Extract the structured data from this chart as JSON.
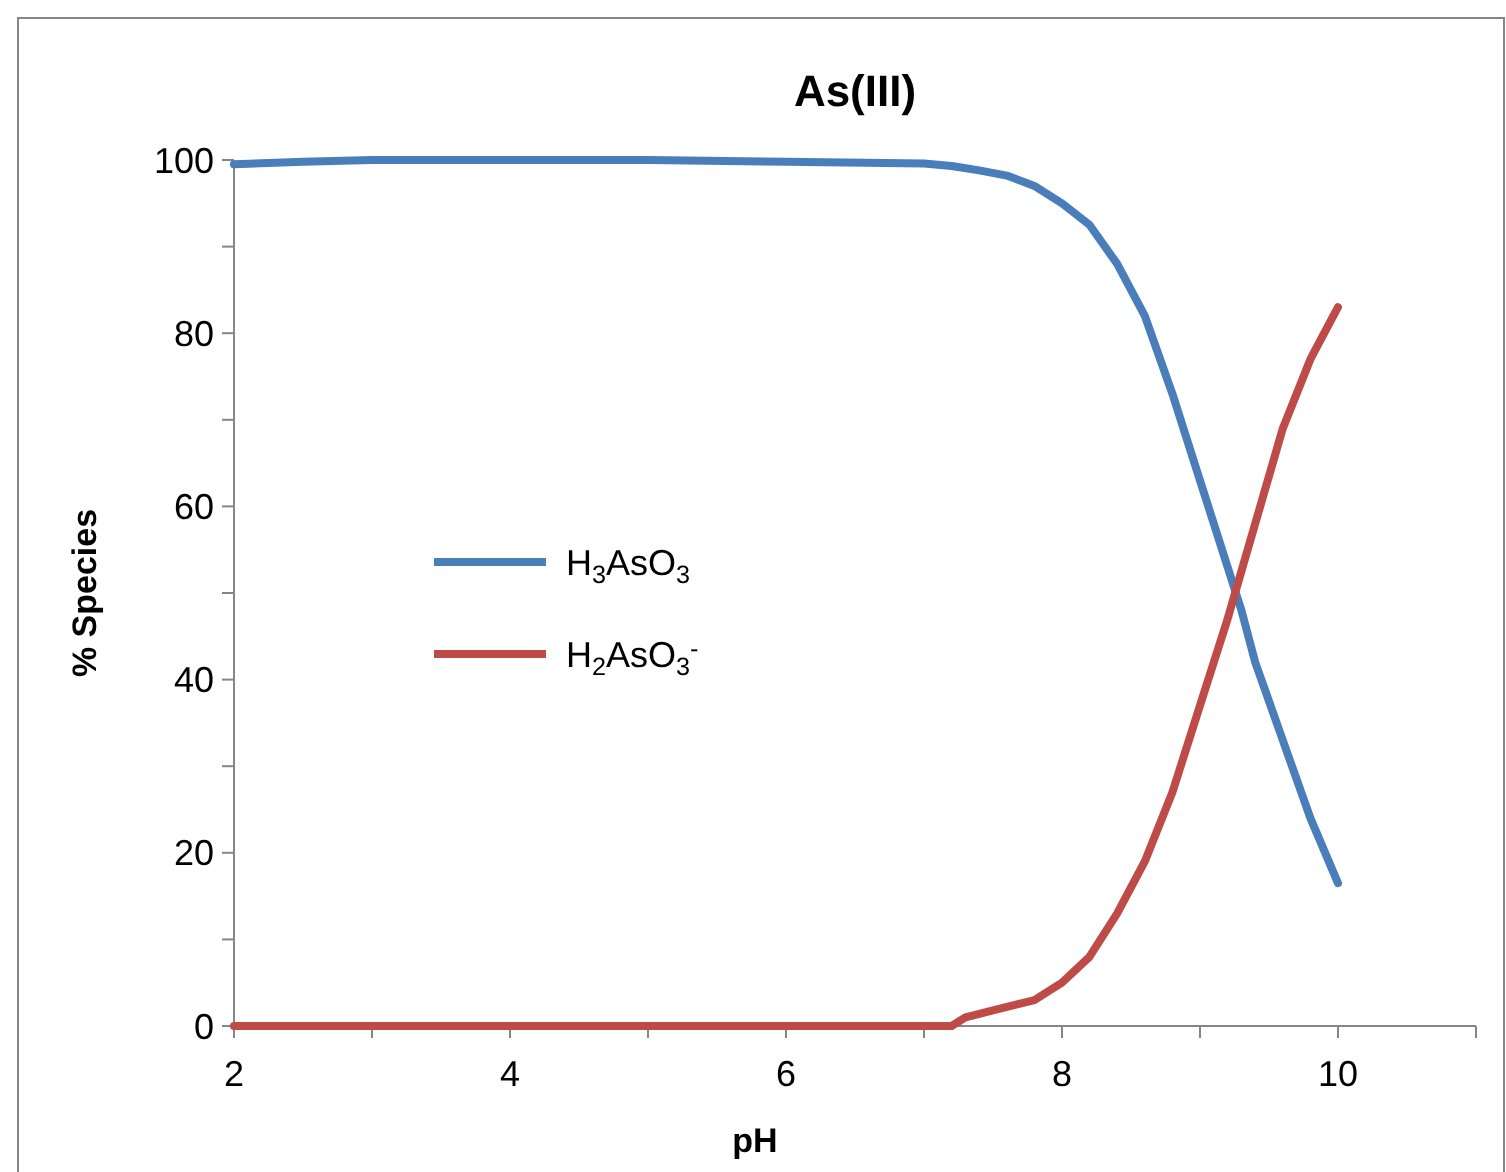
{
  "chart_data": {
    "type": "line",
    "title": "As(III)",
    "xlabel": "pH",
    "ylabel": "% Species",
    "xlim": [
      2,
      11
    ],
    "xticks": [
      2,
      {
        "value": 3,
        "label": null
      },
      4,
      {
        "value": 5,
        "label": null
      },
      6,
      {
        "value": 7,
        "label": null
      },
      8,
      {
        "value": 9,
        "label": null
      },
      10,
      {
        "value": 11,
        "label": null
      }
    ],
    "ylim": [
      0,
      100
    ],
    "yticks": [
      0,
      {
        "value": 10,
        "label": null
      },
      20,
      {
        "value": 30,
        "label": null
      },
      40,
      {
        "value": 50,
        "label": null
      },
      60,
      {
        "value": 70,
        "label": null
      },
      80,
      {
        "value": 90,
        "label": null
      },
      100
    ],
    "grid": false,
    "legend": "left",
    "marker": "none",
    "line_style": "solid",
    "series": [
      {
        "name": "H$_{3}$AsO$_{3}$",
        "color": "#4a7ebb",
        "x": [
          2,
          2.5,
          3,
          4,
          5,
          6,
          7,
          7.2,
          7.4,
          7.6,
          7.8,
          8,
          8.2,
          8.4,
          8.6,
          8.8,
          9,
          9.2,
          9.3,
          9.4,
          9.6,
          9.8,
          10
        ],
        "values": [
          99.5,
          99.8,
          100,
          100,
          100,
          99.8,
          99.6,
          99.3,
          98.8,
          98.2,
          97,
          95,
          92.5,
          88,
          82,
          73,
          63,
          53,
          48,
          42,
          33,
          24,
          16.5
        ]
      },
      {
        "name": "H$_{2}$AsO$_{3}$$^{-}$",
        "color": "#be4b48",
        "x": [
          2,
          3,
          4,
          5,
          6,
          7,
          7.2,
          7.3,
          7.5,
          7.8,
          8,
          8.2,
          8.4,
          8.6,
          8.8,
          9,
          9.2,
          9.4,
          9.6,
          9.8,
          10
        ],
        "values": [
          0,
          0,
          0,
          0,
          0,
          0,
          0,
          1,
          1.8,
          3,
          5,
          8,
          13,
          19,
          27,
          37,
          47,
          58,
          69,
          77,
          83
        ]
      }
    ]
  }
}
